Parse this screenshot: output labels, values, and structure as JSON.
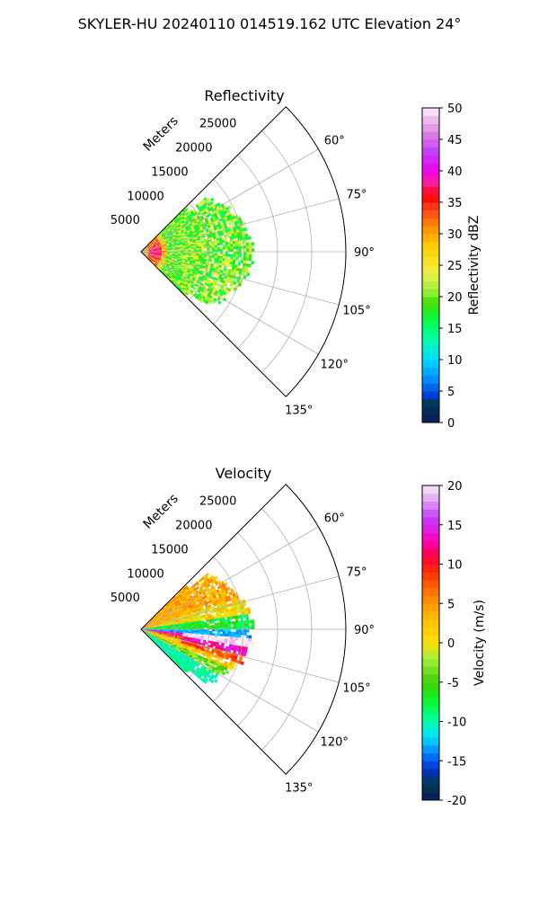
{
  "figure_title": "SKYLER-HU  20240110  014519.162 UTC Elevation 24°",
  "colors": {
    "grid": "#b0b0b0",
    "axis": "#000000"
  },
  "chart_data": [
    {
      "type": "heatmap",
      "projection": "polar-sector",
      "title": "Reflectivity",
      "radial_label": "Meters",
      "radial_ticks": [
        "5000",
        "10000",
        "15000",
        "20000",
        "25000"
      ],
      "radial_max": 30000,
      "angle_range_deg": [
        45,
        135
      ],
      "angle_ticks": [
        "60°",
        "75°",
        "90°",
        "105°",
        "120°",
        "135°"
      ],
      "data_extent_m": 17000,
      "colorbar": {
        "label": "Reflectivity dBZ",
        "ticks": [
          "0",
          "5",
          "10",
          "15",
          "20",
          "25",
          "30",
          "35",
          "40",
          "45",
          "50"
        ],
        "range": [
          0,
          50
        ],
        "stops": [
          [
            0,
            "#0a1a5c"
          ],
          [
            3,
            "#003a4a"
          ],
          [
            4,
            "#0030d0"
          ],
          [
            7,
            "#0090ff"
          ],
          [
            10,
            "#00d8ff"
          ],
          [
            13,
            "#00ffb0"
          ],
          [
            16,
            "#00ff50"
          ],
          [
            19,
            "#40e000"
          ],
          [
            21,
            "#a0f040"
          ],
          [
            24,
            "#f0f040"
          ],
          [
            28,
            "#ffd000"
          ],
          [
            31,
            "#ff9000"
          ],
          [
            34,
            "#ff4020"
          ],
          [
            36,
            "#ff0000"
          ],
          [
            38,
            "#ff2090"
          ],
          [
            40,
            "#f000f0"
          ],
          [
            43,
            "#c040ff"
          ],
          [
            46,
            "#e080e0"
          ],
          [
            50,
            "#f8f0f8"
          ]
        ]
      }
    },
    {
      "type": "heatmap",
      "projection": "polar-sector",
      "title": "Velocity",
      "radial_label": "Meters",
      "radial_ticks": [
        "5000",
        "10000",
        "15000",
        "20000",
        "25000"
      ],
      "radial_max": 30000,
      "angle_range_deg": [
        45,
        135
      ],
      "angle_ticks": [
        "60°",
        "75°",
        "90°",
        "105°",
        "120°",
        "135°"
      ],
      "data_extent_m": 17000,
      "colorbar": {
        "label": "Velocity (m/s)",
        "ticks": [
          "-20",
          "-15",
          "-10",
          "-5",
          "0",
          "5",
          "10",
          "15",
          "20"
        ],
        "range": [
          -20,
          20
        ],
        "stops": [
          [
            -20,
            "#0a1a5c"
          ],
          [
            -18,
            "#003a4a"
          ],
          [
            -16,
            "#0030d0"
          ],
          [
            -14,
            "#0080ff"
          ],
          [
            -12,
            "#00e0ff"
          ],
          [
            -10,
            "#00ffb0"
          ],
          [
            -8,
            "#00ff40"
          ],
          [
            -5,
            "#40d000"
          ],
          [
            -2,
            "#a0f040"
          ],
          [
            0,
            "#ffe000"
          ],
          [
            3,
            "#ffc000"
          ],
          [
            6,
            "#ff8000"
          ],
          [
            9,
            "#ff3000"
          ],
          [
            11,
            "#ff0040"
          ],
          [
            13,
            "#ff00c0"
          ],
          [
            16,
            "#c040ff"
          ],
          [
            18,
            "#e0a0f0"
          ],
          [
            20,
            "#f8e8f8"
          ]
        ]
      }
    }
  ]
}
